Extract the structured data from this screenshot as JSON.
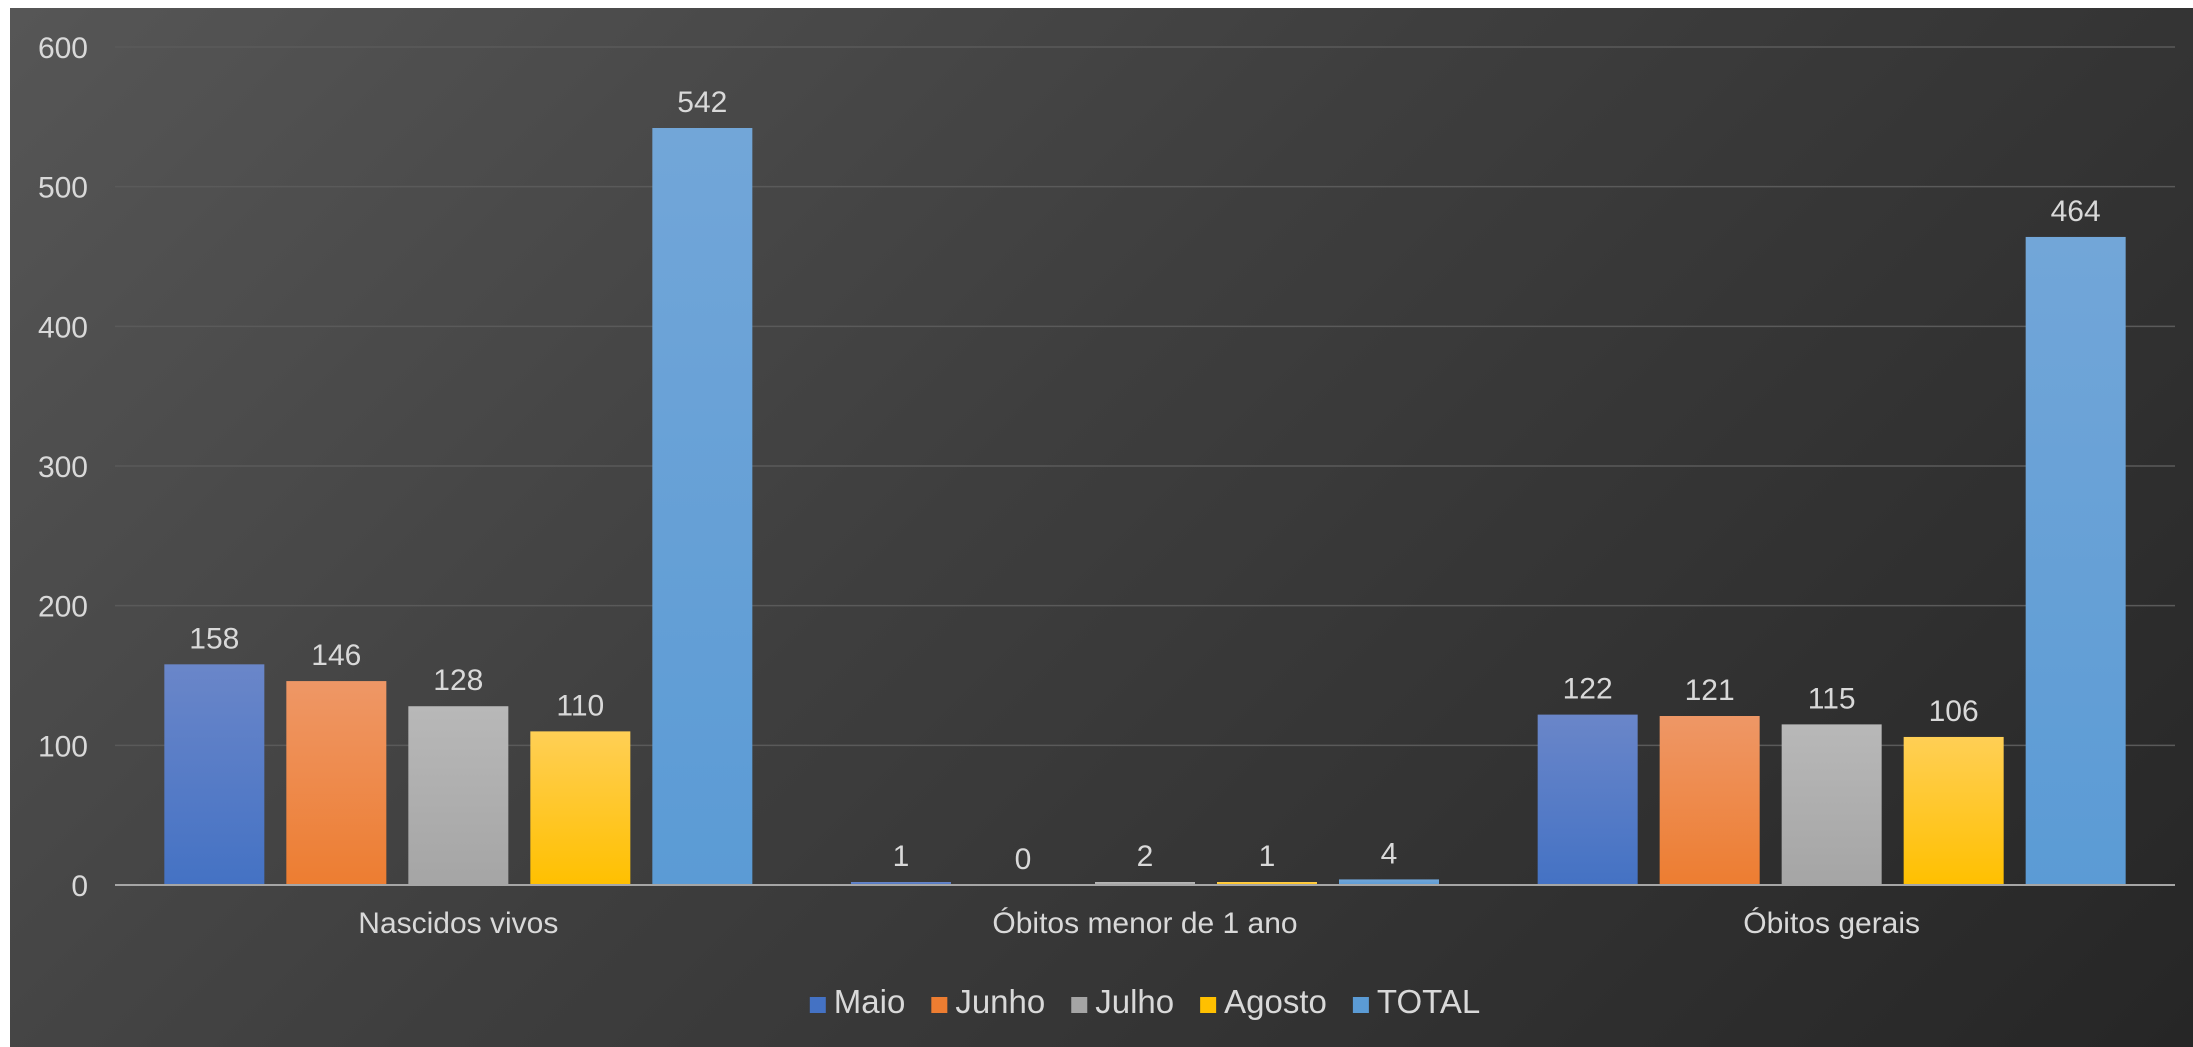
{
  "chart_data": {
    "type": "bar",
    "title": "",
    "xlabel": "",
    "ylabel": "",
    "ylim": [
      0,
      600
    ],
    "yticks": [
      0,
      100,
      200,
      300,
      400,
      500,
      600
    ],
    "grid": true,
    "legend_position": "bottom",
    "categories": [
      "Nascidos vivos",
      "Óbitos menor de 1 ano",
      "Óbitos gerais"
    ],
    "series": [
      {
        "name": "Maio",
        "values": [
          158,
          1,
          122
        ],
        "color": "#4472c4",
        "color_light": "#6a86c9"
      },
      {
        "name": "Junho",
        "values": [
          146,
          0,
          121
        ],
        "color": "#ed7d31",
        "color_light": "#ee9766"
      },
      {
        "name": "Julho",
        "values": [
          128,
          2,
          115
        ],
        "color": "#a5a5a5",
        "color_light": "#b8b8b8"
      },
      {
        "name": "Agosto",
        "values": [
          110,
          1,
          106
        ],
        "color": "#ffc000",
        "color_light": "#ffcf55"
      },
      {
        "name": "TOTAL",
        "values": [
          542,
          4,
          464
        ],
        "color": "#5b9bd5",
        "color_light": "#72a6d8"
      }
    ]
  }
}
